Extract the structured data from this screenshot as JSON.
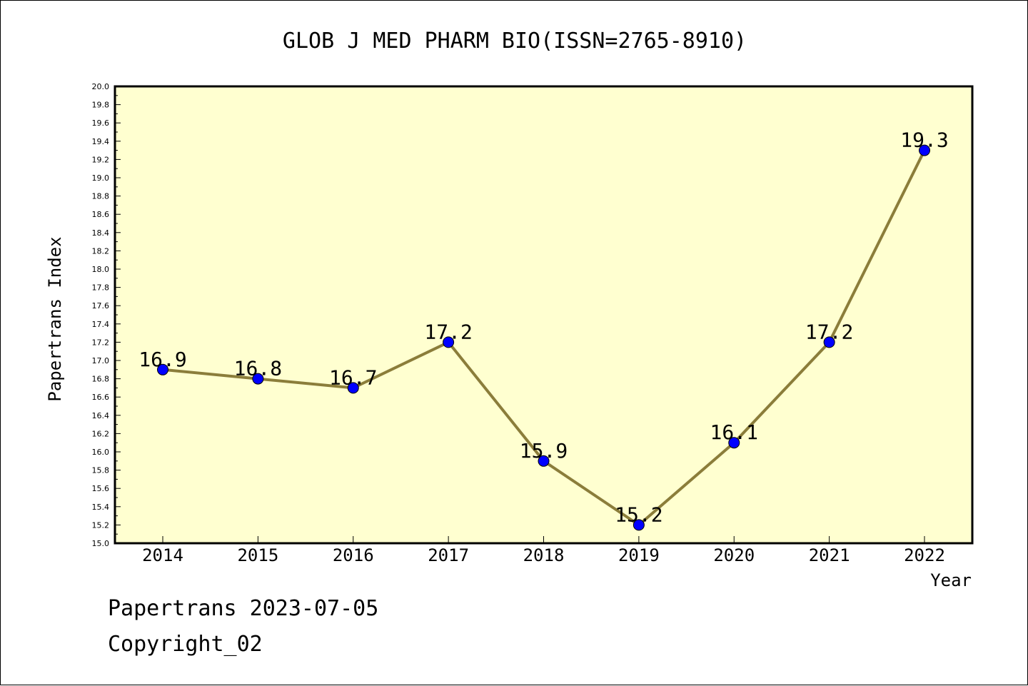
{
  "chart_data": {
    "type": "line",
    "title": "GLOB J MED PHARM BIO(ISSN=2765-8910)",
    "xlabel": "Year",
    "ylabel": "Papertrans Index",
    "categories": [
      "2014",
      "2015",
      "2016",
      "2017",
      "2018",
      "2019",
      "2020",
      "2021",
      "2022"
    ],
    "values": [
      16.9,
      16.8,
      16.7,
      17.2,
      15.9,
      15.2,
      16.1,
      17.2,
      19.3
    ],
    "data_labels": [
      "16.9",
      "16.8",
      "16.7",
      "17.2",
      "15.9",
      "15.2",
      "16.1",
      "17.2",
      "19.3"
    ],
    "ylim": [
      15.0,
      20.0
    ],
    "ytick_labels": [
      "15.0",
      "15.2",
      "15.4",
      "15.6",
      "15.8",
      "16.0",
      "16.2",
      "16.4",
      "16.6",
      "16.8",
      "17.0",
      "17.2",
      "17.4",
      "17.6",
      "17.8",
      "18.0",
      "18.2",
      "18.4",
      "18.6",
      "18.8",
      "19.0",
      "19.2",
      "19.4",
      "19.6",
      "19.8",
      "20.0"
    ],
    "grid": false,
    "legend": "none",
    "colors": {
      "plot_background": "#ffffd0",
      "line": "#8b7d3a",
      "marker": "#0000ff",
      "frame": "#000000"
    }
  },
  "footer": {
    "line1": "Papertrans 2023-07-05",
    "line2": "Copyright_02"
  }
}
